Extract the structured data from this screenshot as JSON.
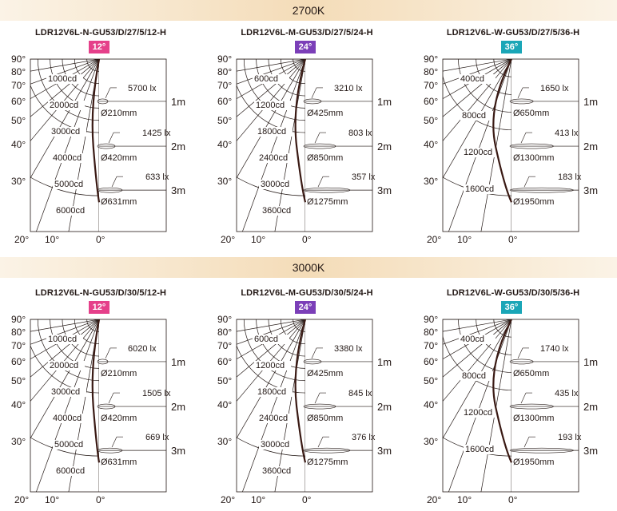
{
  "sections": [
    {
      "heading": "2700K",
      "charts": [
        {
          "model": "LDR12V6L-N-GU53/D/27/5/12-H",
          "angle": "12°",
          "angle_color": "#e5408a",
          "candela_labels": [
            "1000cd",
            "2000cd",
            "3000cd",
            "4000cd",
            "5000cd",
            "6000cd"
          ],
          "lux": [
            "5700 lx",
            "1425 lx",
            "633 lx"
          ],
          "diameters": [
            "Ø210mm",
            "Ø420mm",
            "Ø631mm"
          ]
        },
        {
          "model": "LDR12V6L-M-GU53/D/27/5/24-H",
          "angle": "24°",
          "angle_color": "#7b3fb8",
          "candela_labels": [
            "600cd",
            "1200cd",
            "1800cd",
            "2400cd",
            "3000cd",
            "3600cd"
          ],
          "lux": [
            "3210 lx",
            "803 lx",
            "357 lx"
          ],
          "diameters": [
            "Ø425mm",
            "Ø850mm",
            "Ø1275mm"
          ]
        },
        {
          "model": "LDR12V6L-W-GU53/D/27/5/36-H",
          "angle": "36°",
          "angle_color": "#1aa6b7",
          "candela_labels": [
            "400cd",
            "800cd",
            "1200cd",
            "1600cd"
          ],
          "lux": [
            "1650 lx",
            "413 lx",
            "183 lx"
          ],
          "diameters": [
            "Ø650mm",
            "Ø1300mm",
            "Ø1950mm"
          ]
        }
      ]
    },
    {
      "heading": "3000K",
      "charts": [
        {
          "model": "LDR12V6L-N-GU53/D/30/5/12-H",
          "angle": "12°",
          "angle_color": "#e5408a",
          "candela_labels": [
            "1000cd",
            "2000cd",
            "3000cd",
            "4000cd",
            "5000cd",
            "6000cd"
          ],
          "lux": [
            "6020 lx",
            "1505 lx",
            "669 lx"
          ],
          "diameters": [
            "Ø210mm",
            "Ø420mm",
            "Ø631mm"
          ]
        },
        {
          "model": "LDR12V6L-M-GU53/D/30/5/24-H",
          "angle": "24°",
          "angle_color": "#7b3fb8",
          "candela_labels": [
            "600cd",
            "1200cd",
            "1800cd",
            "2400cd",
            "3000cd",
            "3600cd"
          ],
          "lux": [
            "3380 lx",
            "845 lx",
            "376 lx"
          ],
          "diameters": [
            "Ø425mm",
            "Ø850mm",
            "Ø1275mm"
          ]
        },
        {
          "model": "LDR12V6L-W-GU53/D/30/5/36-H",
          "angle": "36°",
          "angle_color": "#1aa6b7",
          "candela_labels": [
            "400cd",
            "800cd",
            "1200cd",
            "1600cd"
          ],
          "lux": [
            "1740 lx",
            "435 lx",
            "193 lx"
          ],
          "diameters": [
            "Ø650mm",
            "Ø1300mm",
            "Ø1950mm"
          ]
        }
      ]
    }
  ],
  "angle_labels": [
    "90°",
    "80°",
    "70°",
    "60°",
    "50°",
    "40°",
    "30°"
  ],
  "bottom_labels": [
    "20°",
    "10°",
    "0°"
  ],
  "distance_labels": [
    "1m",
    "2m",
    "3m"
  ]
}
